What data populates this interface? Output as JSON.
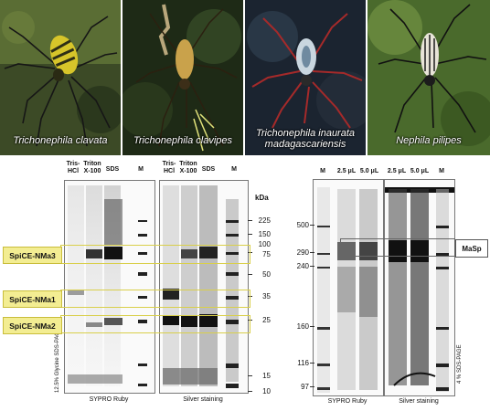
{
  "photos": [
    {
      "caption": "Trichonephila clavata"
    },
    {
      "caption": "Trichonephila clavipes"
    },
    {
      "caption": "Trichonephila inaurata madagascariensis"
    },
    {
      "caption": "Nephila pilipes"
    }
  ],
  "left_gels": {
    "lane_headers_1": [
      "Tris-HCl",
      "Triton X-100",
      "SDS",
      "M"
    ],
    "lane_headers_2": [
      "Tris-HCl",
      "Triton X-100",
      "SDS",
      "M"
    ],
    "marker_unit": "kDa",
    "markers": [
      "225",
      "150",
      "100",
      "75",
      "50",
      "35",
      "25",
      "15",
      "10"
    ],
    "gel_labels": [
      "SYPRO Ruby",
      "Silver staining"
    ],
    "side_label": "12.5% Glycine SDS-PAGE",
    "highlight_tags": [
      "SpiCE-NMa3",
      "SpiCE-NMa1",
      "SpiCE-NMa2"
    ],
    "highlight_color": "#f3ed92"
  },
  "right_gels": {
    "lane_headers_1": [
      "M",
      "2.5 μL",
      "5.0 μL"
    ],
    "lane_headers_2": [
      "2.5 μL",
      "5.0 μL",
      "M"
    ],
    "markers": [
      "500",
      "290",
      "240",
      "160",
      "116",
      "97"
    ],
    "gel_labels": [
      "SYPRO Ruby",
      "Silver staining"
    ],
    "side_label": "4 % SDS-PAGE",
    "box_label": "MaSp"
  }
}
